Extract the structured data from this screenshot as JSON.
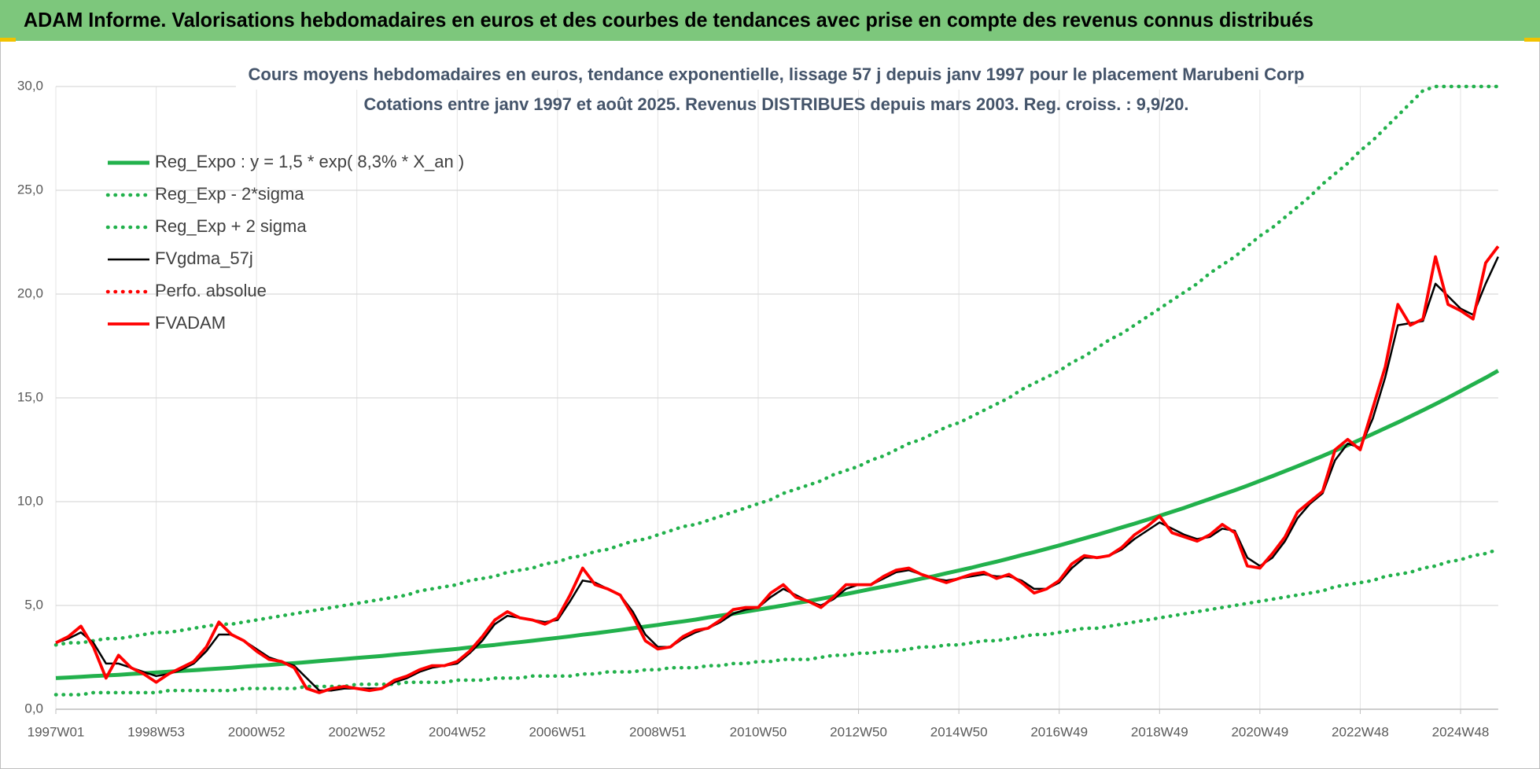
{
  "banner": "ADAM Informe. Valorisations hebdomadaires en euros et des courbes de tendances avec prise en compte des revenus connus distribués",
  "chart_data": {
    "type": "line",
    "title": "Cours moyens hebdomadaires en euros, tendance exponentielle, lissage 57 j depuis janv 1997  pour le placement Marubeni Corp",
    "subtitle": "Cotations entre janv 1997 et août 2025.  Revenus DISTRIBUES depuis mars 2003. Reg. croiss. : 9,9/20.",
    "categories": [
      "1997W01",
      null,
      null,
      null,
      null,
      null,
      null,
      null,
      "1998W53",
      null,
      null,
      null,
      null,
      null,
      null,
      null,
      "2000W52",
      null,
      null,
      null,
      null,
      null,
      null,
      null,
      "2002W52",
      null,
      null,
      null,
      null,
      null,
      null,
      null,
      "2004W52",
      null,
      null,
      null,
      null,
      null,
      null,
      null,
      "2006W51",
      null,
      null,
      null,
      null,
      null,
      null,
      null,
      "2008W51",
      null,
      null,
      null,
      null,
      null,
      null,
      null,
      "2010W50",
      null,
      null,
      null,
      null,
      null,
      null,
      null,
      "2012W50",
      null,
      null,
      null,
      null,
      null,
      null,
      null,
      "2014W50",
      null,
      null,
      null,
      null,
      null,
      null,
      null,
      "2016W49",
      null,
      null,
      null,
      null,
      null,
      null,
      null,
      "2018W49",
      null,
      null,
      null,
      null,
      null,
      null,
      null,
      "2020W49",
      null,
      null,
      null,
      null,
      null,
      null,
      null,
      "2022W48",
      null,
      null,
      null,
      null,
      null,
      null,
      null,
      "2024W48",
      null,
      null,
      null
    ],
    "ylim": [
      0,
      30
    ],
    "yticks": [
      {
        "value": 0,
        "label": "0,0"
      },
      {
        "value": 5,
        "label": "5,0"
      },
      {
        "value": 10,
        "label": "10,0"
      },
      {
        "value": 15,
        "label": "15,0"
      },
      {
        "value": 20,
        "label": "20,0"
      },
      {
        "value": 25,
        "label": "25,0"
      },
      {
        "value": 30,
        "label": "30,0"
      }
    ],
    "grid": true,
    "legend": "top-left",
    "series": [
      {
        "name": "Reg_Expo : y = 1,5 * exp( 8,3% *  X_an )",
        "color": "#22b14c",
        "dash": "solid",
        "values": [
          1.5,
          1.53,
          1.56,
          1.6,
          1.63,
          1.66,
          1.7,
          1.73,
          1.77,
          1.81,
          1.85,
          1.88,
          1.92,
          1.96,
          2.0,
          2.05,
          2.09,
          2.13,
          2.18,
          2.22,
          2.27,
          2.32,
          2.37,
          2.42,
          2.47,
          2.52,
          2.57,
          2.63,
          2.68,
          2.74,
          2.8,
          2.85,
          2.91,
          2.98,
          3.04,
          3.1,
          3.17,
          3.23,
          3.3,
          3.37,
          3.44,
          3.51,
          3.59,
          3.66,
          3.74,
          3.82,
          3.9,
          3.98,
          4.06,
          4.15,
          4.23,
          4.32,
          4.42,
          4.51,
          4.6,
          4.7,
          4.8,
          4.9,
          5.0,
          5.11,
          5.21,
          5.32,
          5.44,
          5.55,
          5.67,
          5.79,
          5.91,
          6.03,
          6.16,
          6.29,
          6.41,
          6.55,
          6.68,
          6.82,
          6.97,
          7.11,
          7.26,
          7.42,
          7.57,
          7.73,
          7.89,
          8.06,
          8.23,
          8.4,
          8.58,
          8.76,
          8.94,
          9.13,
          9.32,
          9.51,
          9.71,
          9.92,
          10.13,
          10.34,
          10.55,
          10.77,
          11.0,
          11.23,
          11.47,
          11.71,
          11.95,
          12.2,
          12.46,
          12.72,
          12.99,
          13.26,
          13.54,
          13.82,
          14.11,
          14.4,
          14.7,
          15.01,
          15.33,
          15.65,
          15.97,
          16.31
        ]
      },
      {
        "name": "Reg_Exp - 2*sigma",
        "color": "#22b14c",
        "dash": "dotted",
        "values": [
          0.7,
          0.7,
          0.7,
          0.8,
          0.8,
          0.8,
          0.8,
          0.8,
          0.8,
          0.9,
          0.9,
          0.9,
          0.9,
          0.9,
          0.9,
          1.0,
          1.0,
          1.0,
          1.0,
          1.0,
          1.1,
          1.1,
          1.1,
          1.1,
          1.2,
          1.2,
          1.2,
          1.2,
          1.3,
          1.3,
          1.3,
          1.3,
          1.4,
          1.4,
          1.4,
          1.5,
          1.5,
          1.5,
          1.6,
          1.6,
          1.6,
          1.6,
          1.7,
          1.7,
          1.8,
          1.8,
          1.8,
          1.9,
          1.9,
          2.0,
          2.0,
          2.0,
          2.1,
          2.1,
          2.2,
          2.2,
          2.3,
          2.3,
          2.4,
          2.4,
          2.4,
          2.5,
          2.6,
          2.6,
          2.7,
          2.7,
          2.8,
          2.8,
          2.9,
          3.0,
          3.0,
          3.1,
          3.1,
          3.2,
          3.3,
          3.3,
          3.4,
          3.5,
          3.6,
          3.6,
          3.7,
          3.8,
          3.9,
          3.9,
          4.0,
          4.1,
          4.2,
          4.3,
          4.4,
          4.5,
          4.6,
          4.7,
          4.8,
          4.9,
          5.0,
          5.1,
          5.2,
          5.3,
          5.4,
          5.5,
          5.6,
          5.7,
          5.9,
          6.0,
          6.1,
          6.2,
          6.4,
          6.5,
          6.6,
          6.8,
          6.9,
          7.1,
          7.2,
          7.4,
          7.5,
          7.7
        ]
      },
      {
        "name": "Reg_Exp + 2 sigma",
        "color": "#22b14c",
        "dash": "dotted",
        "values": [
          3.1,
          3.2,
          3.2,
          3.3,
          3.4,
          3.4,
          3.5,
          3.6,
          3.7,
          3.7,
          3.8,
          3.9,
          4.0,
          4.1,
          4.1,
          4.2,
          4.3,
          4.4,
          4.5,
          4.6,
          4.7,
          4.8,
          4.9,
          5.0,
          5.1,
          5.2,
          5.3,
          5.4,
          5.5,
          5.7,
          5.8,
          5.9,
          6.0,
          6.2,
          6.3,
          6.4,
          6.6,
          6.7,
          6.8,
          7.0,
          7.1,
          7.3,
          7.4,
          7.6,
          7.7,
          7.9,
          8.1,
          8.2,
          8.4,
          8.6,
          8.8,
          8.9,
          9.1,
          9.3,
          9.5,
          9.7,
          9.9,
          10.1,
          10.4,
          10.6,
          10.8,
          11.0,
          11.3,
          11.5,
          11.7,
          12.0,
          12.2,
          12.5,
          12.8,
          13.0,
          13.3,
          13.6,
          13.8,
          14.1,
          14.4,
          14.7,
          15.0,
          15.4,
          15.7,
          16.0,
          16.3,
          16.7,
          17.0,
          17.4,
          17.8,
          18.1,
          18.5,
          18.9,
          19.3,
          19.7,
          20.1,
          20.5,
          21.0,
          21.4,
          21.8,
          22.3,
          22.8,
          23.2,
          23.7,
          24.2,
          24.7,
          25.3,
          25.8,
          26.3,
          26.9,
          27.4,
          28.0,
          28.6,
          29.2,
          29.8,
          30,
          30,
          30,
          30,
          30,
          30
        ]
      },
      {
        "name": "FVgdma_57j",
        "color": "#000000",
        "dash": "solid",
        "values": [
          3.2,
          3.4,
          3.7,
          3.2,
          2.2,
          2.2,
          2.0,
          1.8,
          1.6,
          1.7,
          1.9,
          2.2,
          2.8,
          3.6,
          3.6,
          3.3,
          2.9,
          2.5,
          2.3,
          2.1,
          1.5,
          0.9,
          0.9,
          1.0,
          1.0,
          1.0,
          1.0,
          1.3,
          1.5,
          1.8,
          2.0,
          2.1,
          2.2,
          2.7,
          3.3,
          4.1,
          4.5,
          4.4,
          4.3,
          4.2,
          4.3,
          5.2,
          6.2,
          6.1,
          5.8,
          5.5,
          4.7,
          3.6,
          3.0,
          3.0,
          3.4,
          3.7,
          3.9,
          4.2,
          4.6,
          4.8,
          4.9,
          5.4,
          5.8,
          5.5,
          5.2,
          5.0,
          5.3,
          5.8,
          6.0,
          6.0,
          6.3,
          6.6,
          6.7,
          6.5,
          6.3,
          6.2,
          6.3,
          6.4,
          6.5,
          6.4,
          6.4,
          6.2,
          5.8,
          5.8,
          6.1,
          6.8,
          7.3,
          7.3,
          7.4,
          7.7,
          8.2,
          8.6,
          9.0,
          8.7,
          8.4,
          8.2,
          8.3,
          8.7,
          8.6,
          7.3,
          6.9,
          7.3,
          8.1,
          9.2,
          9.9,
          10.4,
          12.0,
          12.8,
          12.6,
          14.0,
          16.0,
          18.5,
          18.6,
          18.7,
          20.5,
          19.9,
          19.3,
          19.0,
          20.5,
          21.8
        ]
      },
      {
        "name": "Perfo. absolue",
        "color": "#ff0000",
        "dash": "dotted"
      },
      {
        "name": "FVADAM",
        "color": "#ff0000",
        "dash": "solid",
        "values": [
          3.2,
          3.5,
          4.0,
          3.0,
          1.5,
          2.6,
          2.0,
          1.7,
          1.3,
          1.7,
          2.0,
          2.3,
          3.0,
          4.2,
          3.6,
          3.3,
          2.8,
          2.4,
          2.3,
          2.0,
          1.0,
          0.8,
          1.0,
          1.1,
          1.0,
          0.9,
          1.0,
          1.4,
          1.6,
          1.9,
          2.1,
          2.1,
          2.3,
          2.8,
          3.5,
          4.3,
          4.7,
          4.4,
          4.3,
          4.1,
          4.4,
          5.5,
          6.8,
          6.0,
          5.8,
          5.5,
          4.5,
          3.3,
          2.9,
          3.0,
          3.5,
          3.8,
          3.9,
          4.3,
          4.8,
          4.9,
          4.9,
          5.6,
          6.0,
          5.4,
          5.2,
          4.9,
          5.4,
          6.0,
          6.0,
          6.0,
          6.4,
          6.7,
          6.8,
          6.5,
          6.3,
          6.1,
          6.3,
          6.5,
          6.6,
          6.3,
          6.5,
          6.1,
          5.6,
          5.8,
          6.2,
          7.0,
          7.4,
          7.3,
          7.4,
          7.8,
          8.4,
          8.8,
          9.3,
          8.5,
          8.3,
          8.1,
          8.4,
          8.9,
          8.5,
          6.9,
          6.8,
          7.5,
          8.3,
          9.5,
          10.0,
          10.5,
          12.5,
          13.0,
          12.5,
          14.5,
          16.5,
          19.5,
          18.5,
          18.8,
          21.8,
          19.5,
          19.2,
          18.8,
          21.5,
          22.3
        ]
      }
    ]
  }
}
